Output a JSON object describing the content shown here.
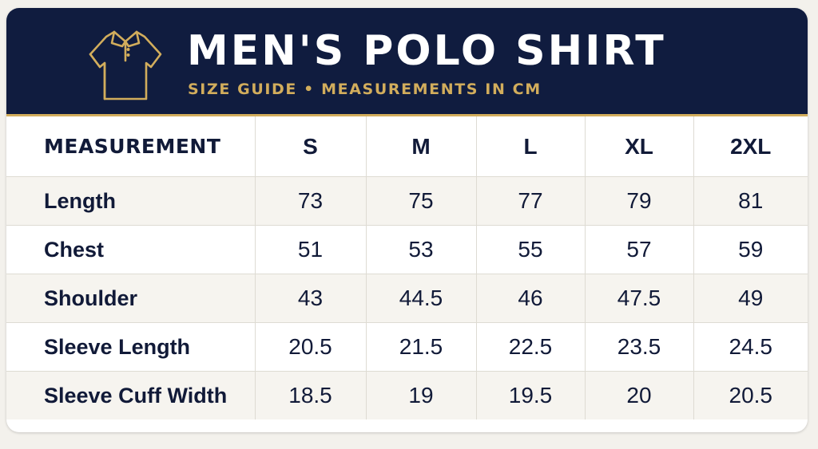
{
  "header": {
    "title": "MEN'S POLO SHIRT",
    "subtitle": "SIZE GUIDE • MEASUREMENTS IN CM",
    "logo_icon": "polo-shirt-icon",
    "background_color": "#101c3f",
    "accent_color": "#d2ad5c"
  },
  "table": {
    "columns": [
      "MEASUREMENT",
      "S",
      "M",
      "L",
      "XL",
      "2XL"
    ],
    "rows": [
      {
        "label": "Length",
        "values": [
          "73",
          "75",
          "77",
          "79",
          "81"
        ]
      },
      {
        "label": "Chest",
        "values": [
          "51",
          "53",
          "55",
          "57",
          "59"
        ]
      },
      {
        "label": "Shoulder",
        "values": [
          "43",
          "44.5",
          "46",
          "47.5",
          "49"
        ]
      },
      {
        "label": "Sleeve Length",
        "values": [
          "20.5",
          "21.5",
          "22.5",
          "23.5",
          "24.5"
        ]
      },
      {
        "label": "Sleeve Cuff Width",
        "values": [
          "18.5",
          "19",
          "19.5",
          "20",
          "20.5"
        ]
      }
    ]
  }
}
